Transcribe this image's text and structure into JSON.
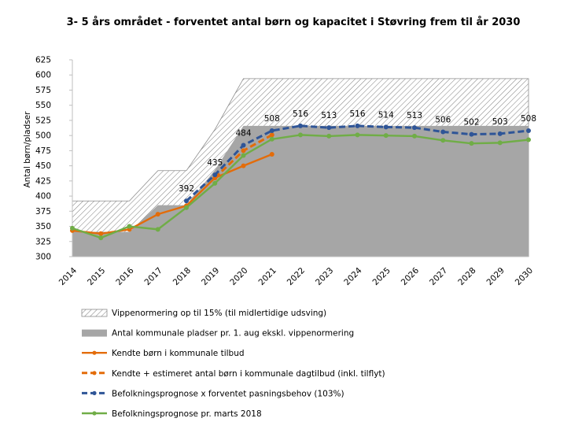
{
  "chart_data": {
    "type": "line",
    "title": "3- 5 års området - forventet antal børn og kapacitet i Støvring frem til år 2030",
    "ylabel": "Antal børn/pladser",
    "xlabel": "",
    "ylim": [
      300,
      625
    ],
    "ytick_step": 25,
    "grid": false,
    "legend_position": "bottom",
    "categories": [
      "2014",
      "2015",
      "2016",
      "2017",
      "2018",
      "2019",
      "2020",
      "2021",
      "2022",
      "2023",
      "2024",
      "2025",
      "2026",
      "2027",
      "2028",
      "2029",
      "2030"
    ],
    "areas": [
      {
        "name": "Vippenormering op til 15% (til midlertidige udsving)",
        "style": "hatch",
        "values": [
          392,
          392,
          392,
          442,
          442,
          510,
          594,
          594,
          594,
          594,
          594,
          594,
          594,
          594,
          594,
          594,
          594
        ]
      },
      {
        "name": "Antal kommunale pladser pr. 1. aug ekskl. vippenormering",
        "style": "solid",
        "color": "#a6a6a6",
        "values": [
          341,
          341,
          341,
          385,
          385,
          443,
          516,
          516,
          516,
          516,
          516,
          516,
          516,
          516,
          516,
          516,
          516
        ]
      }
    ],
    "series": [
      {
        "name": "Kendte børn i kommunale tilbud",
        "color": "#e36c0a",
        "dash": "solid",
        "values": [
          343,
          338,
          345,
          370,
          384,
          430,
          450,
          469,
          null,
          null,
          null,
          null,
          null,
          null,
          null,
          null,
          null
        ]
      },
      {
        "name": "Kendte + estimeret antal børn i kommunale dagtilbud (inkl. tilflyt)",
        "color": "#e36c0a",
        "dash": "dashed",
        "values": [
          null,
          null,
          null,
          null,
          null,
          430,
          475,
          501,
          null,
          null,
          null,
          null,
          null,
          null,
          null,
          null,
          null
        ]
      },
      {
        "name": "Befolkningsprognose x forventet pasningsbehov (103%)",
        "color": "#2f5597",
        "dash": "dashed",
        "values": [
          null,
          null,
          null,
          null,
          392,
          435,
          484,
          508,
          516,
          513,
          516,
          514,
          513,
          506,
          502,
          503,
          508
        ],
        "labels": [
          "",
          "",
          "",
          "",
          "392",
          "435",
          "484",
          "508",
          "516",
          "513",
          "516",
          "514",
          "513",
          "506",
          "502",
          "503",
          "508"
        ]
      },
      {
        "name": "Befolkningsprognose pr. marts 2018",
        "color": "#70ad47",
        "dash": "solid",
        "values": [
          347,
          331,
          350,
          345,
          381,
          421,
          467,
          494,
          501,
          499,
          501,
          500,
          499,
          492,
          487,
          488,
          493
        ]
      }
    ]
  }
}
